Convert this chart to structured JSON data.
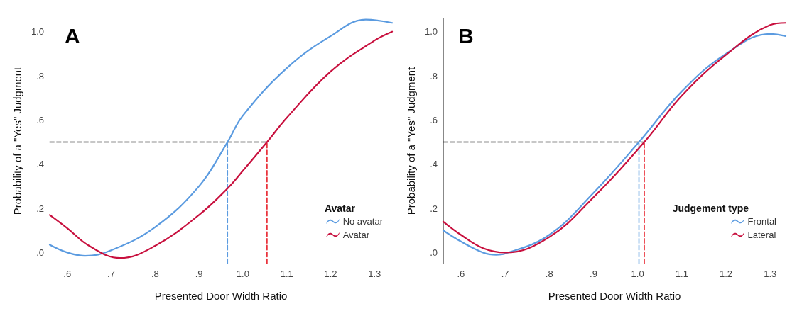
{
  "chart_data": [
    {
      "type": "line",
      "title": "A",
      "xlabel": "Presented Door Width Ratio",
      "ylabel": "Probability of a \"Yes\" Judgment",
      "legend_title": "Avatar",
      "legend": "bottom right",
      "grid": false,
      "marker": "none",
      "line_style": "solid",
      "xlim": [
        0.56,
        1.34
      ],
      "ylim": [
        -0.05,
        1.06
      ],
      "xticks": [
        {
          "value": 0.6,
          "label": ".6"
        },
        {
          "value": 0.7,
          "label": ".7"
        },
        {
          "value": 0.8,
          "label": ".8"
        },
        {
          "value": 0.9,
          "label": ".9"
        },
        {
          "value": 1.0,
          "label": "1.0"
        },
        {
          "value": 1.1,
          "label": "1.1"
        },
        {
          "value": 1.2,
          "label": "1.2"
        },
        {
          "value": 1.3,
          "label": "1.3"
        }
      ],
      "yticks": [
        {
          "value": 0,
          "label": ".0"
        },
        {
          "value": 0.2,
          "label": ".2"
        },
        {
          "value": 0.4,
          "label": ".4"
        },
        {
          "value": 0.6,
          "label": ".6"
        },
        {
          "value": 0.8,
          "label": ".8"
        },
        {
          "value": 1.0,
          "label": "1.0"
        }
      ],
      "series": [
        {
          "name": "No avatar",
          "color": "#5b9be0",
          "x": [
            0.56,
            0.6,
            0.64,
            0.7,
            0.8,
            0.9,
            0.965,
            1.0,
            1.1,
            1.2,
            1.28,
            1.34
          ],
          "values": [
            0.035,
            0.0,
            -0.015,
            0.01,
            0.115,
            0.3,
            0.5,
            0.62,
            0.835,
            0.98,
            1.055,
            1.04
          ]
        },
        {
          "name": "Avatar",
          "color": "#c8103e",
          "x": [
            0.56,
            0.6,
            0.65,
            0.72,
            0.8,
            0.9,
            0.965,
            1.0,
            1.055,
            1.1,
            1.2,
            1.3,
            1.34
          ],
          "values": [
            0.17,
            0.11,
            0.03,
            -0.025,
            0.03,
            0.17,
            0.29,
            0.37,
            0.5,
            0.61,
            0.82,
            0.96,
            1.0
          ]
        },
        {
          "color": "#222222",
          "line_style": "dashed",
          "x": [
            0.56,
            1.055
          ],
          "values": [
            0.5,
            0.5
          ]
        },
        {
          "color": "#5b9be0",
          "line_style": "dashed",
          "x": [
            0.965,
            0.965
          ],
          "values": [
            -0.05,
            0.5
          ]
        },
        {
          "color": "#e8202a",
          "line_style": "dashed",
          "x": [
            1.055,
            1.055
          ],
          "values": [
            -0.05,
            0.5
          ]
        }
      ]
    },
    {
      "type": "line",
      "title": "B",
      "xlabel": "Presented Door Width Ratio",
      "ylabel": "Probability of a \"Yes\" Judgment",
      "legend_title": "Judgement type",
      "legend": "bottom right",
      "grid": false,
      "marker": "none",
      "line_style": "solid",
      "xlim": [
        0.56,
        1.335
      ],
      "ylim": [
        -0.05,
        1.06
      ],
      "xticks": [
        {
          "value": 0.6,
          "label": ".6"
        },
        {
          "value": 0.7,
          "label": ".7"
        },
        {
          "value": 0.8,
          "label": ".8"
        },
        {
          "value": 0.9,
          "label": ".9"
        },
        {
          "value": 1.0,
          "label": "1.0"
        },
        {
          "value": 1.1,
          "label": "1.1"
        },
        {
          "value": 1.2,
          "label": "1.2"
        },
        {
          "value": 1.3,
          "label": "1.3"
        }
      ],
      "yticks": [
        {
          "value": 0,
          "label": ".0"
        },
        {
          "value": 0.2,
          "label": ".2"
        },
        {
          "value": 0.4,
          "label": ".4"
        },
        {
          "value": 0.6,
          "label": ".6"
        },
        {
          "value": 0.8,
          "label": ".8"
        },
        {
          "value": 1.0,
          "label": "1.0"
        }
      ],
      "series": [
        {
          "name": "Frontal",
          "color": "#5b9be0",
          "x": [
            0.56,
            0.6,
            0.65,
            0.68,
            0.7,
            0.8,
            0.9,
            1.003,
            1.1,
            1.2,
            1.3,
            1.335
          ],
          "values": [
            0.1,
            0.05,
            0.0,
            -0.01,
            -0.005,
            0.08,
            0.27,
            0.5,
            0.73,
            0.9,
            0.99,
            0.98
          ]
        },
        {
          "name": "Lateral",
          "color": "#c8103e",
          "x": [
            0.56,
            0.6,
            0.65,
            0.7,
            0.8,
            0.9,
            1.015,
            1.1,
            1.2,
            1.3,
            1.335
          ],
          "values": [
            0.14,
            0.08,
            0.02,
            0.0,
            0.07,
            0.25,
            0.5,
            0.71,
            0.895,
            1.03,
            1.04
          ]
        },
        {
          "color": "#222222",
          "line_style": "dashed",
          "x": [
            0.56,
            1.015
          ],
          "values": [
            0.5,
            0.5
          ]
        },
        {
          "color": "#5b9be0",
          "line_style": "dashed",
          "x": [
            1.003,
            1.003
          ],
          "values": [
            -0.05,
            0.5
          ]
        },
        {
          "color": "#e8202a",
          "line_style": "dashed",
          "x": [
            1.015,
            1.015
          ],
          "values": [
            -0.05,
            0.5
          ]
        }
      ]
    }
  ]
}
